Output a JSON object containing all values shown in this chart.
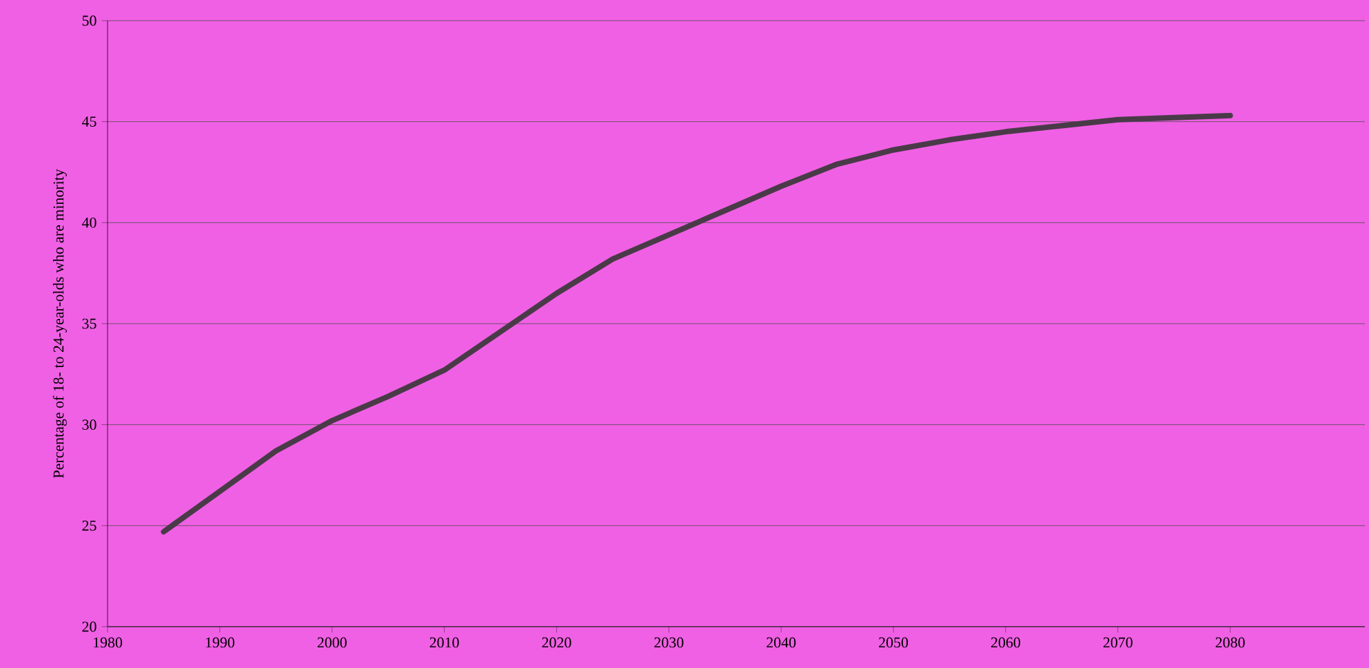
{
  "chart_data": {
    "type": "line",
    "ylabel": "Percentage of 18- to 24-year-olds who are minority",
    "x": [
      1985,
      1990,
      1995,
      2000,
      2005,
      2010,
      2015,
      2020,
      2025,
      2030,
      2035,
      2040,
      2045,
      2050,
      2055,
      2060,
      2065,
      2070,
      2075,
      2080
    ],
    "series": [
      {
        "color": "#4a3a48",
        "values": [
          24.7,
          26.7,
          28.7,
          30.2,
          31.4,
          32.7,
          34.6,
          36.5,
          38.2,
          39.4,
          40.6,
          41.8,
          42.9,
          43.6,
          44.1,
          44.5,
          44.8,
          45.1,
          45.2,
          45.3
        ]
      }
    ],
    "xlim": [
      1980,
      2092
    ],
    "xticks": [
      1980,
      1990,
      2000,
      2010,
      2020,
      2030,
      2040,
      2050,
      2060,
      2070,
      2080
    ],
    "ylim": [
      20,
      50
    ],
    "yticks": [
      20,
      25,
      30,
      35,
      40,
      45,
      50
    ],
    "grid": "y",
    "marker": "none",
    "line_style": "solid"
  }
}
